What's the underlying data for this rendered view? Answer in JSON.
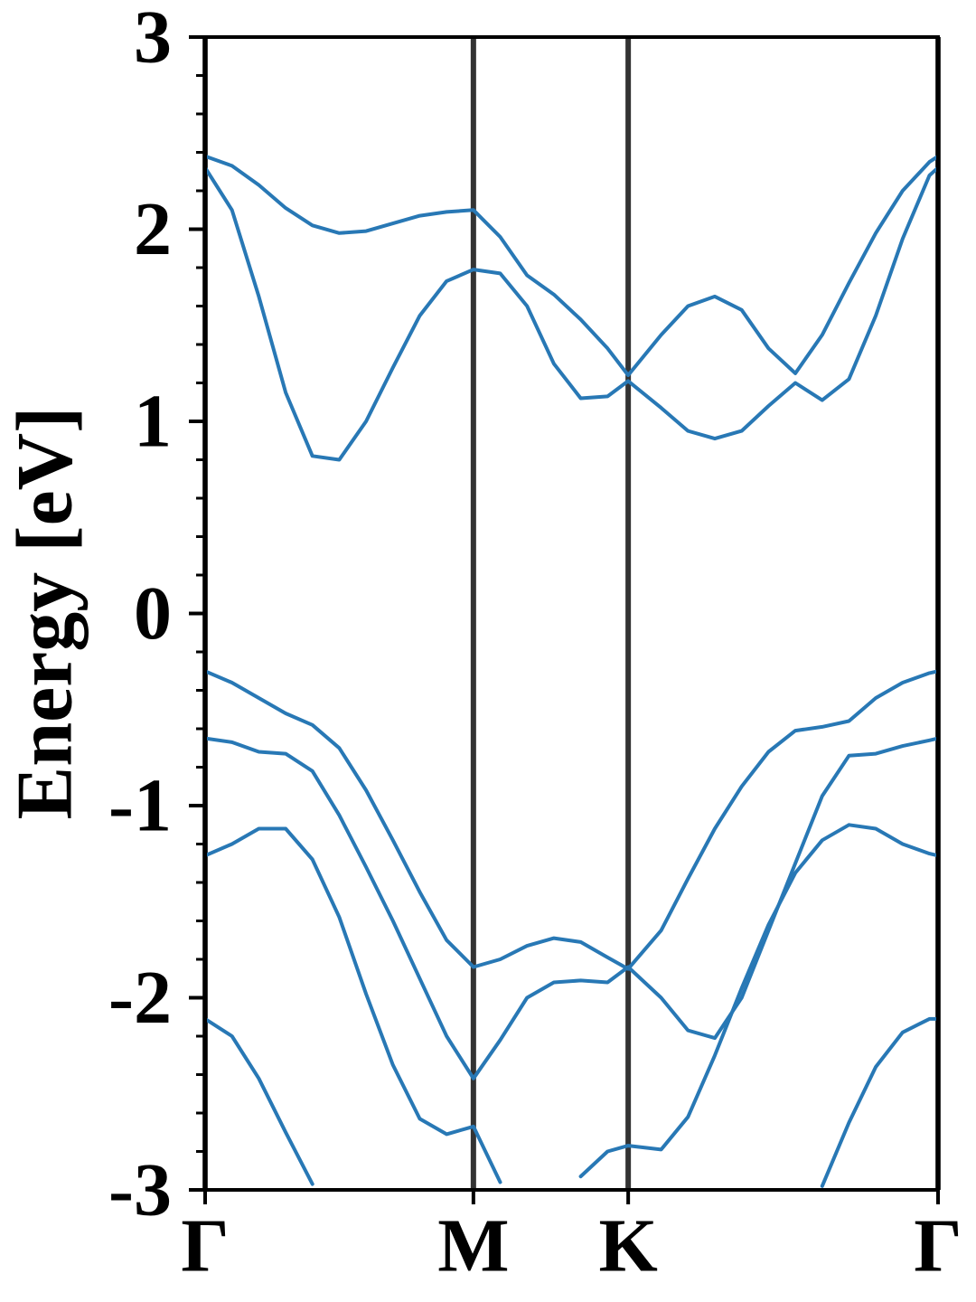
{
  "chart_data": {
    "type": "line",
    "ylabel": "Energy [eV]",
    "x": [
      0,
      0.1,
      0.2,
      0.3,
      0.4,
      0.5,
      0.6,
      0.7,
      0.8,
      0.9,
      1.0,
      1.1,
      1.2,
      1.3,
      1.4,
      1.5,
      1.577,
      1.7,
      1.8,
      1.9,
      2.0,
      2.1,
      2.2,
      2.3,
      2.4,
      2.5,
      2.6,
      2.7,
      2.732
    ],
    "series": [
      {
        "color": "#2878b5",
        "values": [
          2.38,
          2.33,
          2.23,
          2.11,
          2.02,
          1.98,
          1.99,
          2.03,
          2.07,
          2.09,
          2.1,
          1.96,
          1.76,
          1.66,
          1.53,
          1.38,
          1.24,
          1.45,
          1.6,
          1.65,
          1.58,
          1.38,
          1.25,
          1.45,
          1.72,
          1.98,
          2.2,
          2.35,
          2.38
        ]
      },
      {
        "color": "#2878b5",
        "values": [
          2.32,
          2.1,
          1.65,
          1.15,
          0.82,
          0.8,
          1.0,
          1.28,
          1.55,
          1.73,
          1.79,
          1.77,
          1.6,
          1.3,
          1.12,
          1.13,
          1.21,
          1.07,
          0.95,
          0.91,
          0.95,
          1.08,
          1.2,
          1.11,
          1.22,
          1.55,
          1.95,
          2.28,
          2.32
        ]
      },
      {
        "color": "#2878b5",
        "values": [
          -0.3,
          -0.36,
          -0.44,
          -0.52,
          -0.58,
          -0.7,
          -0.92,
          -1.18,
          -1.45,
          -1.7,
          -1.84,
          -1.8,
          -1.73,
          -1.69,
          -1.71,
          -1.79,
          -1.85,
          -1.65,
          -1.38,
          -1.12,
          -0.9,
          -0.72,
          -0.61,
          -0.59,
          -0.56,
          -0.44,
          -0.36,
          -0.31,
          -0.3
        ]
      },
      {
        "color": "#2878b5",
        "values": [
          -0.65,
          -0.67,
          -0.72,
          -0.73,
          -0.82,
          -1.05,
          -1.32,
          -1.6,
          -1.9,
          -2.2,
          -2.42,
          -2.22,
          -2.0,
          -1.92,
          -1.91,
          -1.92,
          -1.84,
          -2.0,
          -2.17,
          -2.21,
          -2.0,
          -1.65,
          -1.3,
          -0.95,
          -0.74,
          -0.73,
          -0.69,
          -0.66,
          -0.65
        ]
      },
      {
        "color": "#2878b5",
        "values": [
          -1.26,
          -1.2,
          -1.12,
          -1.12,
          -1.28,
          -1.58,
          -1.98,
          -2.35,
          -2.63,
          -2.71,
          -2.67,
          -2.96,
          null,
          null,
          -2.93,
          -2.8,
          -2.77,
          -2.79,
          -2.62,
          -2.3,
          -1.95,
          -1.62,
          -1.35,
          -1.18,
          -1.1,
          -1.12,
          -1.2,
          -1.25,
          -1.26
        ]
      },
      {
        "color": "#2878b5",
        "values": [
          -2.11,
          -2.2,
          -2.42,
          -2.7,
          -2.97,
          null,
          null,
          null,
          null,
          null,
          null,
          null,
          null,
          null,
          null,
          null,
          null,
          null,
          null,
          null,
          null,
          null,
          null,
          -2.98,
          -2.65,
          -2.36,
          -2.18,
          -2.11,
          -2.11
        ]
      }
    ],
    "xlim": [
      0,
      2.732
    ],
    "xticks": [
      {
        "value": 0,
        "label": "Γ"
      },
      {
        "value": 1.0,
        "label": "M"
      },
      {
        "value": 1.577,
        "label": "K"
      },
      {
        "value": 2.732,
        "label": "Γ"
      }
    ],
    "ylim": [
      -3,
      3
    ],
    "yticks": [
      -3,
      -2,
      -1,
      0,
      1,
      2,
      3
    ],
    "yminorticks": [
      -2.8,
      -2.6,
      -2.4,
      -2.2,
      -1.8,
      -1.6,
      -1.4,
      -1.2,
      -0.8,
      -0.6,
      -0.4,
      -0.2,
      0.2,
      0.4,
      0.6,
      0.8,
      1.2,
      1.4,
      1.6,
      1.8,
      2.2,
      2.4,
      2.6,
      2.8
    ],
    "xtick_lines": true,
    "line_width": 4
  }
}
